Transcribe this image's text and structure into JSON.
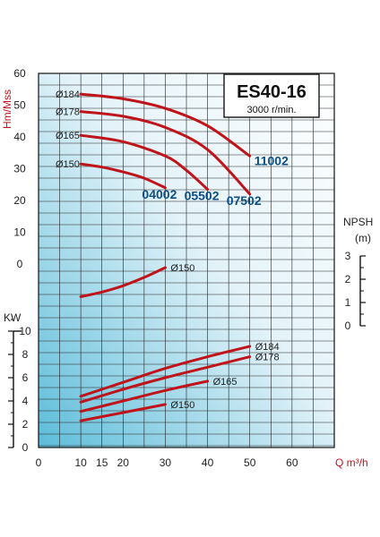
{
  "chart_data": {
    "type": "line",
    "title": "ES40-16",
    "subtitle": "3000 r/min.",
    "x_axis": {
      "label": "Q m³/h",
      "ticks": [
        0,
        10,
        15,
        20,
        30,
        40,
        50,
        60
      ],
      "xlim": [
        0,
        70
      ]
    },
    "head_axis": {
      "label": "Hm/Mss",
      "ticks": [
        0,
        10,
        20,
        30,
        40,
        50,
        60
      ],
      "ylim": [
        0,
        60
      ]
    },
    "npsh_axis": {
      "label": "NPSH",
      "unit": "(m)",
      "ticks": [
        0,
        1,
        2,
        3
      ],
      "ylim": [
        0,
        3
      ]
    },
    "power_axis": {
      "label": "KW",
      "ticks": [
        0,
        2,
        4,
        6,
        8,
        10
      ],
      "ylim": [
        0,
        10
      ]
    },
    "head_series": [
      {
        "name": "Ø184",
        "model": "11002",
        "x": [
          10,
          20,
          30,
          40,
          50
        ],
        "y": [
          53.5,
          52,
          49,
          43.5,
          34
        ]
      },
      {
        "name": "Ø178",
        "model": "07502",
        "x": [
          10,
          20,
          30,
          40,
          50
        ],
        "y": [
          48,
          46.5,
          43,
          36,
          22
        ]
      },
      {
        "name": "Ø165",
        "model": "05502",
        "x": [
          10,
          20,
          30,
          35,
          40
        ],
        "y": [
          40.5,
          38.5,
          34,
          29.5,
          23.5
        ]
      },
      {
        "name": "Ø150",
        "model": "04002",
        "x": [
          10,
          15,
          20,
          25,
          30
        ],
        "y": [
          31.5,
          30.5,
          29,
          27,
          24
        ]
      }
    ],
    "npsh_series": [
      {
        "name": "Ø150",
        "x": [
          10,
          15,
          20,
          25,
          30
        ],
        "y": [
          1.25,
          1.45,
          1.72,
          2.08,
          2.5
        ]
      }
    ],
    "power_series": [
      {
        "name": "Ø184",
        "x": [
          10,
          20,
          30,
          40,
          50
        ],
        "y": [
          4.4,
          5.6,
          6.8,
          7.8,
          8.7
        ]
      },
      {
        "name": "Ø178",
        "x": [
          10,
          20,
          30,
          40,
          50
        ],
        "y": [
          3.9,
          5.0,
          6.0,
          6.9,
          7.8
        ]
      },
      {
        "name": "Ø165",
        "x": [
          10,
          20,
          30,
          40
        ],
        "y": [
          3.1,
          4.0,
          4.9,
          5.7
        ]
      },
      {
        "name": "Ø150",
        "x": [
          10,
          20,
          30
        ],
        "y": [
          2.3,
          3.0,
          3.7
        ]
      }
    ],
    "colors": {
      "curve": "#c0141b",
      "model_label": "#0c4f86",
      "gradient_light": "#ffffff",
      "gradient_dark": "#5cbcd9"
    },
    "grid": true
  }
}
